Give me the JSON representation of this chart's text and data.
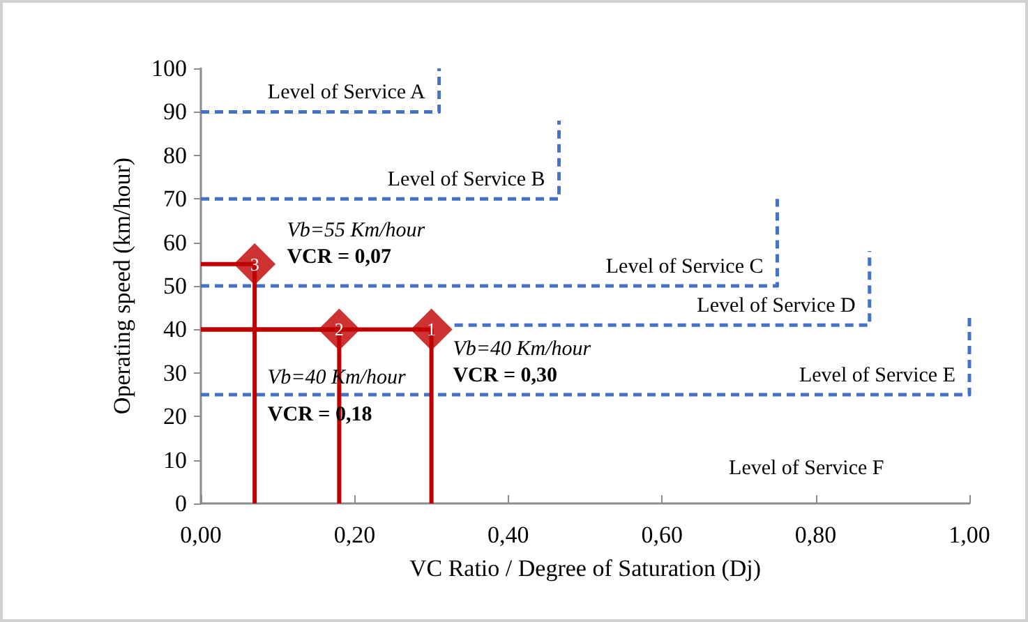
{
  "chart_data": {
    "type": "line",
    "xlabel": "VC Ratio / Degree of Saturation (Dj)",
    "ylabel": "Operating speed (km/hour)",
    "xlim": [
      0,
      1
    ],
    "xticks": [
      {
        "value": 0,
        "label": "0,00"
      },
      {
        "value": 0.2,
        "label": "0,20"
      },
      {
        "value": 0.4,
        "label": "0,40"
      },
      {
        "value": 0.6,
        "label": "0,60"
      },
      {
        "value": 0.8,
        "label": "0,80"
      },
      {
        "value": 1,
        "label": "1,00"
      }
    ],
    "ylim": [
      0,
      100
    ],
    "yticks": [
      0,
      10,
      20,
      30,
      40,
      50,
      60,
      70,
      80,
      90,
      100
    ],
    "grid": false,
    "legend": false,
    "series": [
      {
        "name": "Level of Service A",
        "color": "#4472c4",
        "line_style": "dashed",
        "marker": "none",
        "x": [
          0,
          0.31,
          0.31
        ],
        "values": [
          90,
          90,
          100
        ]
      },
      {
        "name": "Level of Service B",
        "color": "#4472c4",
        "line_style": "dashed",
        "marker": "none",
        "x": [
          0,
          0.466,
          0.466
        ],
        "values": [
          70,
          70,
          88
        ]
      },
      {
        "name": "Level of Service C",
        "color": "#4472c4",
        "line_style": "dashed",
        "marker": "none",
        "x": [
          0,
          0.75,
          0.75
        ],
        "values": [
          50,
          50,
          70
        ]
      },
      {
        "name": "Level of Service D",
        "color": "#4472c4",
        "line_style": "dashed",
        "marker": "none",
        "x": [
          0.33,
          0.87,
          0.87
        ],
        "values": [
          41,
          41,
          58
        ]
      },
      {
        "name": "Level of Service E",
        "color": "#4472c4",
        "line_style": "dashed",
        "marker": "none",
        "x": [
          0,
          1,
          1
        ],
        "values": [
          25,
          25,
          43
        ]
      },
      {
        "color": "#c00000",
        "line_style": "solid",
        "marker": "none",
        "x": [
          0,
          0.07,
          0.07
        ],
        "values": [
          55,
          55,
          0
        ]
      },
      {
        "color": "#c00000",
        "line_style": "solid",
        "marker": "none",
        "x": [
          0,
          0.18,
          0.18
        ],
        "values": [
          40,
          40,
          0
        ]
      },
      {
        "color": "#c00000",
        "line_style": "solid",
        "marker": "none",
        "x": [
          0,
          0.3,
          0.3
        ],
        "values": [
          40,
          40,
          0
        ]
      },
      {
        "type": "scatter",
        "color": "#c00000",
        "marker": "diamond",
        "x": [
          0.3,
          0.18,
          0.07
        ],
        "values": [
          40,
          40,
          55
        ]
      }
    ],
    "annotations": [
      "Level of Service F",
      {
        "text": "1",
        "x": 0.3,
        "y": 40
      },
      {
        "text": "2",
        "x": 0.18,
        "y": 40
      },
      {
        "text": "3",
        "x": 0.07,
        "y": 55
      },
      "Vb=55 Km/hour",
      "VCR = 0,07",
      "Vb=40 Km/hour",
      "VCR = 0,30",
      "Vb=40 Km/hour",
      "VCR = 0,18"
    ]
  }
}
